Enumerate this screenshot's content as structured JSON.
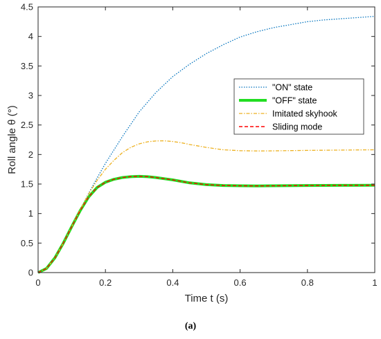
{
  "caption": "(a)",
  "chart_data": {
    "type": "line",
    "xlabel": "Time t (s)",
    "ylabel": "Roll angle θ (°)",
    "xlim": [
      0,
      1
    ],
    "ylim": [
      0,
      4.5
    ],
    "xticks": [
      "0",
      "0.2",
      "0.4",
      "0.6",
      "0.8",
      "1"
    ],
    "yticks": [
      "0",
      "0.5",
      "1",
      "1.5",
      "2",
      "2.5",
      "3",
      "3.5",
      "4",
      "4.5"
    ],
    "grid": false,
    "legend_position": "upper-right-inside",
    "series": [
      {
        "name": "\"ON\" state",
        "color": "#0072BD",
        "style": "dotted",
        "x": [
          0,
          0.025,
          0.05,
          0.075,
          0.1,
          0.125,
          0.15,
          0.175,
          0.2,
          0.25,
          0.3,
          0.35,
          0.4,
          0.45,
          0.5,
          0.55,
          0.6,
          0.65,
          0.7,
          0.75,
          0.8,
          0.85,
          0.9,
          0.95,
          1.0
        ],
        "y": [
          0,
          0.07,
          0.25,
          0.5,
          0.78,
          1.07,
          1.34,
          1.6,
          1.85,
          2.3,
          2.72,
          3.05,
          3.32,
          3.53,
          3.71,
          3.86,
          3.99,
          4.08,
          4.15,
          4.2,
          4.25,
          4.28,
          4.3,
          4.32,
          4.34
        ]
      },
      {
        "name": "\"OFF\" state",
        "color": "#22DD22",
        "style": "solid-thick",
        "x": [
          0,
          0.025,
          0.05,
          0.075,
          0.1,
          0.125,
          0.15,
          0.175,
          0.2,
          0.225,
          0.25,
          0.275,
          0.3,
          0.325,
          0.35,
          0.375,
          0.4,
          0.45,
          0.5,
          0.55,
          0.6,
          0.65,
          0.7,
          0.8,
          0.9,
          1.0
        ],
        "y": [
          0,
          0.07,
          0.25,
          0.5,
          0.78,
          1.05,
          1.28,
          1.44,
          1.53,
          1.58,
          1.61,
          1.625,
          1.63,
          1.625,
          1.61,
          1.59,
          1.57,
          1.52,
          1.49,
          1.475,
          1.47,
          1.468,
          1.47,
          1.475,
          1.478,
          1.48
        ]
      },
      {
        "name": "Imitated skyhook",
        "color": "#EDB120",
        "style": "dashdot",
        "x": [
          0,
          0.025,
          0.05,
          0.075,
          0.1,
          0.125,
          0.15,
          0.175,
          0.2,
          0.225,
          0.25,
          0.275,
          0.3,
          0.325,
          0.35,
          0.375,
          0.4,
          0.425,
          0.45,
          0.5,
          0.55,
          0.6,
          0.65,
          0.7,
          0.8,
          0.9,
          1.0
        ],
        "y": [
          0,
          0.07,
          0.25,
          0.5,
          0.78,
          1.07,
          1.33,
          1.56,
          1.75,
          1.9,
          2.03,
          2.12,
          2.18,
          2.215,
          2.23,
          2.232,
          2.22,
          2.2,
          2.17,
          2.12,
          2.08,
          2.065,
          2.06,
          2.062,
          2.07,
          2.075,
          2.08
        ]
      },
      {
        "name": "Sliding mode",
        "color": "#FF0000",
        "style": "dashed",
        "x": [
          0,
          0.025,
          0.05,
          0.075,
          0.1,
          0.125,
          0.15,
          0.175,
          0.2,
          0.225,
          0.25,
          0.275,
          0.3,
          0.325,
          0.35,
          0.375,
          0.4,
          0.45,
          0.5,
          0.55,
          0.6,
          0.65,
          0.7,
          0.8,
          0.9,
          1.0
        ],
        "y": [
          0,
          0.07,
          0.25,
          0.5,
          0.78,
          1.05,
          1.28,
          1.44,
          1.53,
          1.58,
          1.61,
          1.625,
          1.63,
          1.625,
          1.61,
          1.59,
          1.57,
          1.52,
          1.49,
          1.475,
          1.47,
          1.468,
          1.47,
          1.475,
          1.478,
          1.48
        ]
      }
    ]
  }
}
